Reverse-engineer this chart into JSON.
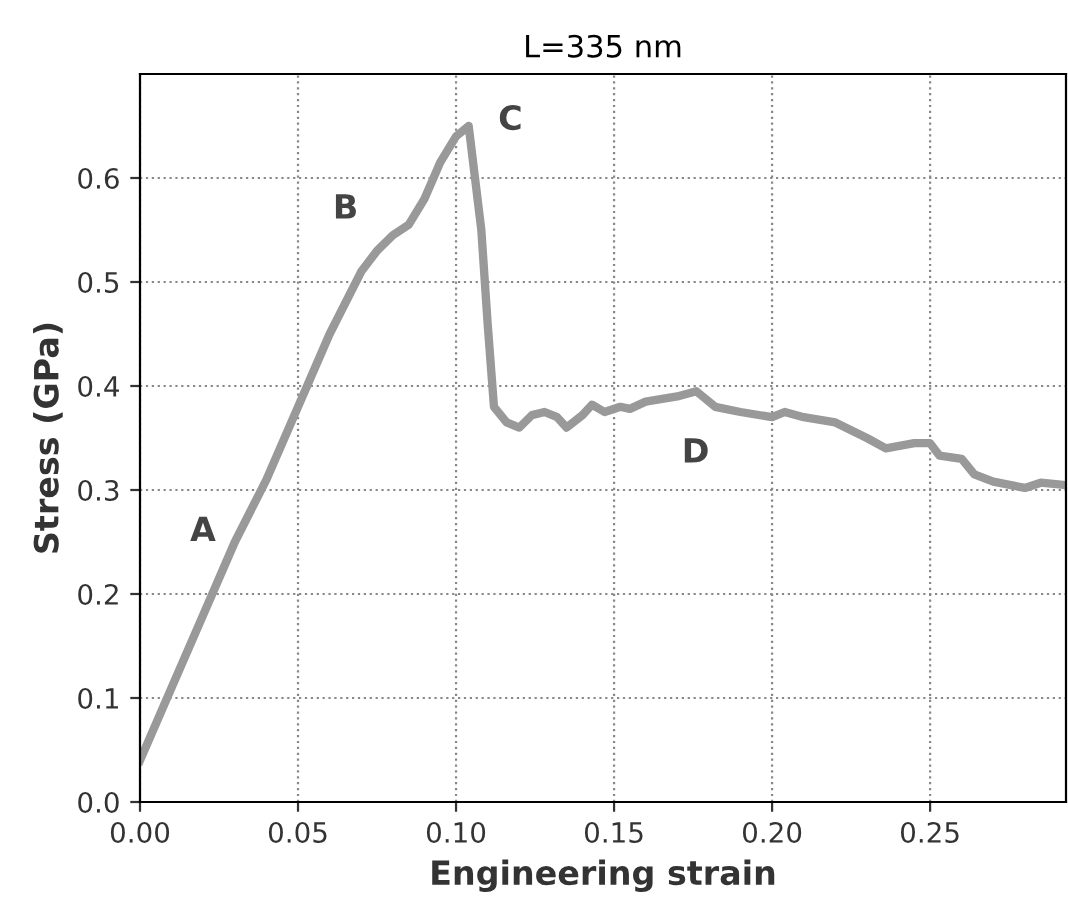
{
  "chart_data": {
    "type": "line",
    "title": "L=335 nm",
    "xlabel": "Engineering strain",
    "ylabel": "Stress (GPa)",
    "x": [
      0,
      0.01,
      0.02,
      0.03,
      0.04,
      0.05,
      0.06,
      0.07,
      0.075,
      0.08,
      0.085,
      0.09,
      0.095,
      0.1,
      0.104,
      0.106,
      0.108,
      0.11,
      0.112,
      0.116,
      0.12,
      0.124,
      0.128,
      0.132,
      0.135,
      0.14,
      0.143,
      0.147,
      0.152,
      0.155,
      0.16,
      0.17,
      0.176,
      0.178,
      0.182,
      0.19,
      0.2,
      0.204,
      0.21,
      0.22,
      0.23,
      0.236,
      0.245,
      0.25,
      0.253,
      0.26,
      0.264,
      0.27,
      0.28,
      0.285,
      0.292
    ],
    "series": [
      {
        "color": "#999999",
        "values": [
          0.04,
          0.11,
          0.18,
          0.25,
          0.31,
          0.38,
          0.45,
          0.51,
          0.53,
          0.545,
          0.555,
          0.58,
          0.615,
          0.64,
          0.65,
          0.6,
          0.55,
          0.46,
          0.38,
          0.365,
          0.36,
          0.372,
          0.375,
          0.37,
          0.36,
          0.372,
          0.382,
          0.375,
          0.38,
          0.378,
          0.385,
          0.39,
          0.395,
          0.39,
          0.38,
          0.375,
          0.37,
          0.375,
          0.37,
          0.365,
          0.35,
          0.34,
          0.345,
          0.345,
          0.333,
          0.33,
          0.315,
          0.308,
          0.302,
          0.307,
          0.305
        ]
      }
    ],
    "annotations": [
      "A",
      "B",
      "C",
      "D"
    ],
    "xlim": [
      0,
      0.293
    ],
    "ylim": [
      0,
      0.7
    ],
    "xticks": [
      {
        "value": 0,
        "label": "0.00"
      },
      0.05,
      {
        "value": 0.1,
        "label": "0.10"
      },
      0.15,
      {
        "value": 0.2,
        "label": "0.20"
      },
      0.25
    ],
    "yticks": [
      {
        "value": 0,
        "label": "0.0"
      },
      0.1,
      0.2,
      0.3,
      0.4,
      0.5,
      0.6
    ],
    "grid": true,
    "line_style": "solid"
  }
}
